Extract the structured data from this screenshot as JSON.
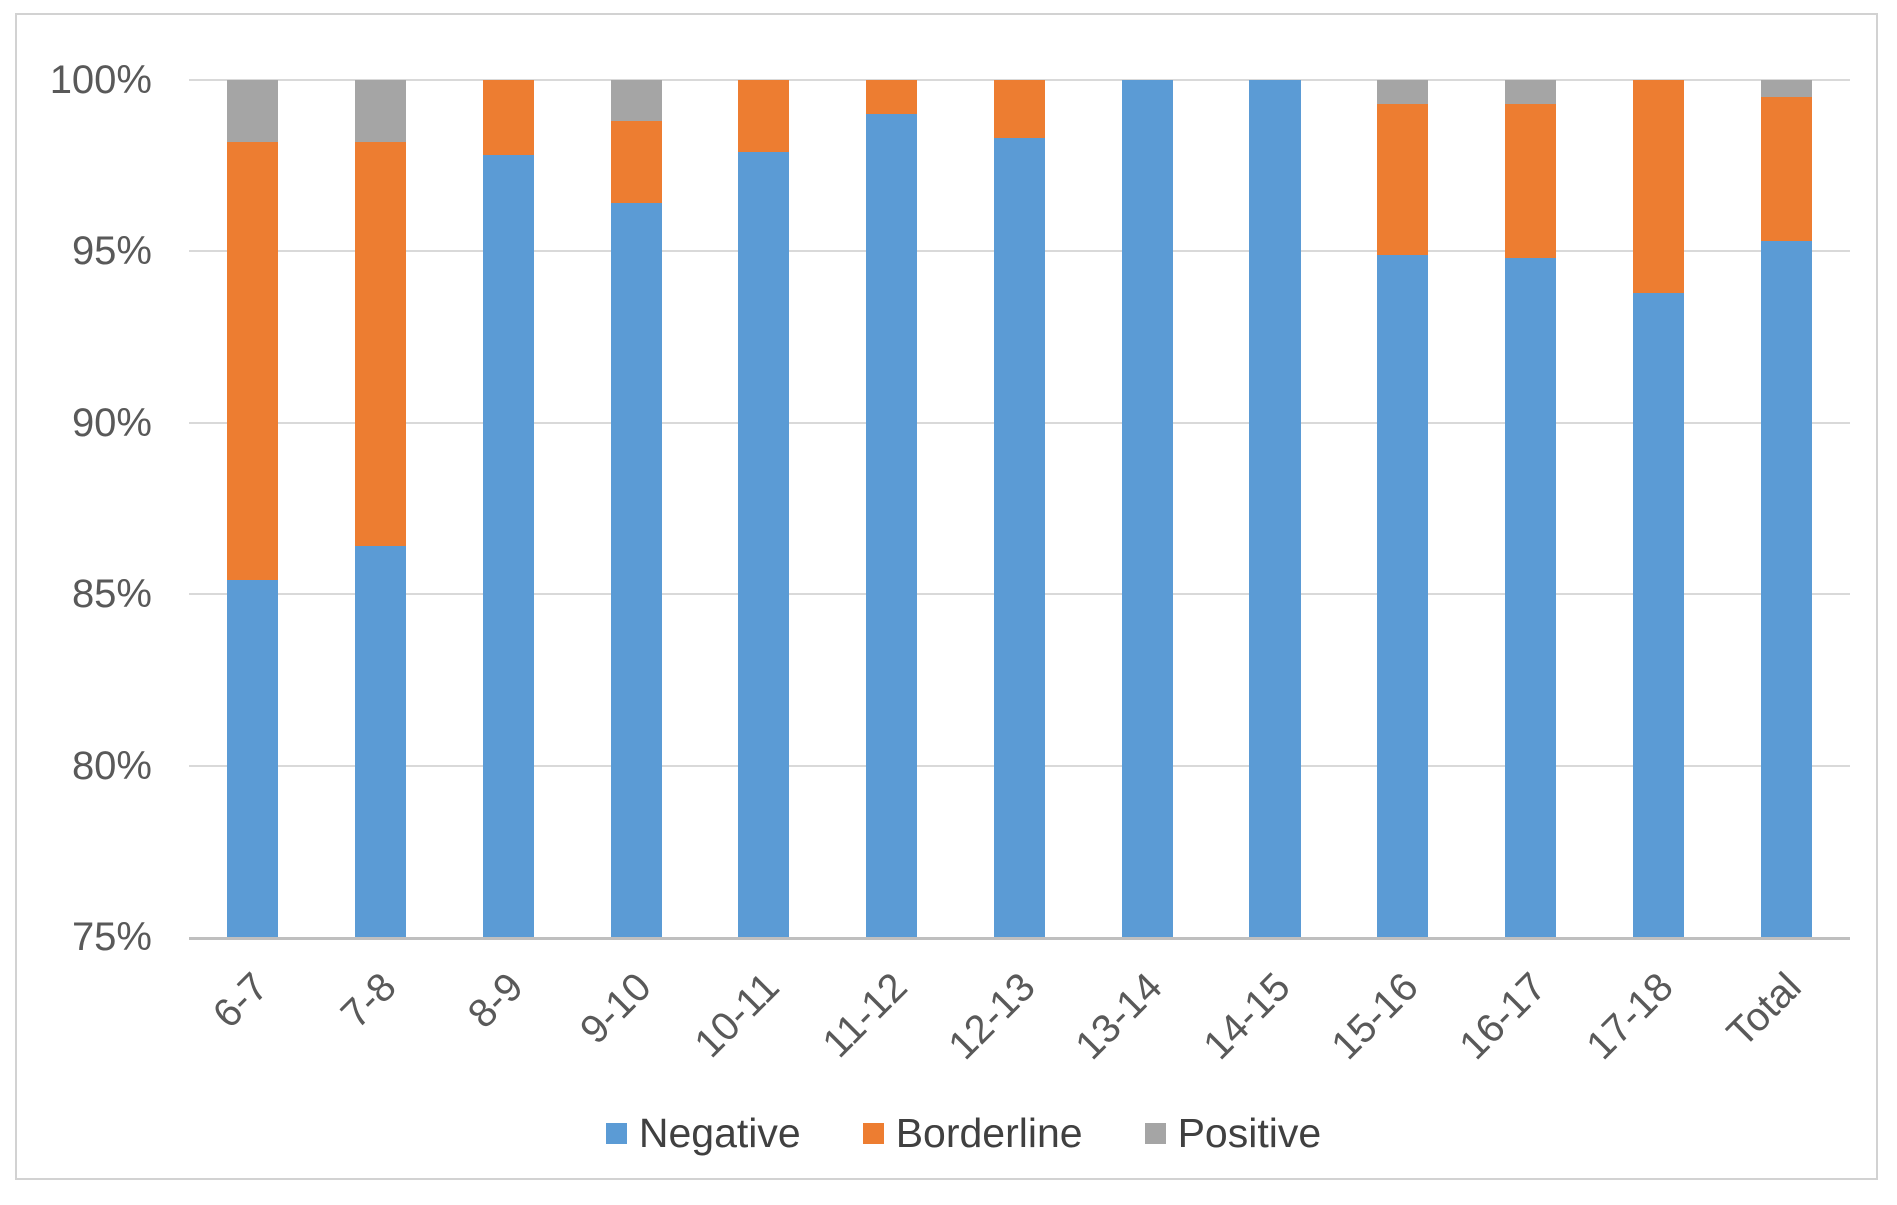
{
  "chart_data": {
    "type": "bar",
    "stacked": true,
    "stack_mode": "percent",
    "title": "",
    "xlabel": "",
    "ylabel": "",
    "categories": [
      "6-7",
      "7-8",
      "8-9",
      "9-10",
      "10-11",
      "11-12",
      "12-13",
      "13-14",
      "14-15",
      "15-16",
      "16-17",
      "17-18",
      "Total"
    ],
    "series": [
      {
        "name": "Negative",
        "color": "#5B9BD5",
        "values": [
          85.4,
          86.4,
          97.8,
          96.4,
          97.9,
          99.0,
          98.3,
          100.0,
          100.0,
          94.9,
          94.8,
          93.8,
          95.3
        ]
      },
      {
        "name": "Borderline",
        "color": "#ED7D31",
        "values": [
          12.8,
          11.8,
          2.2,
          2.4,
          2.1,
          1.0,
          1.7,
          0.0,
          0.0,
          4.4,
          4.5,
          6.2,
          4.2
        ]
      },
      {
        "name": "Positive",
        "color": "#A5A5A5",
        "values": [
          1.8,
          1.8,
          0.0,
          1.2,
          0.0,
          0.0,
          0.0,
          0.0,
          0.0,
          0.7,
          0.7,
          0.0,
          0.5
        ]
      }
    ],
    "y_axis": {
      "min": 75,
      "max": 100,
      "step": 5,
      "tick_labels": [
        "100%",
        "95%",
        "90%",
        "85%",
        "80%",
        "75%"
      ],
      "format": "percent"
    },
    "grid": true,
    "legend_position": "bottom",
    "bar_gap_ratio": 0.6
  },
  "colors": {
    "axis_text": "#595959",
    "legend_text": "#404040",
    "gridline": "#D9D9D9",
    "axis_line": "#BFBFBF",
    "chart_border": "#D2D2D2",
    "background": "#FFFFFF"
  }
}
